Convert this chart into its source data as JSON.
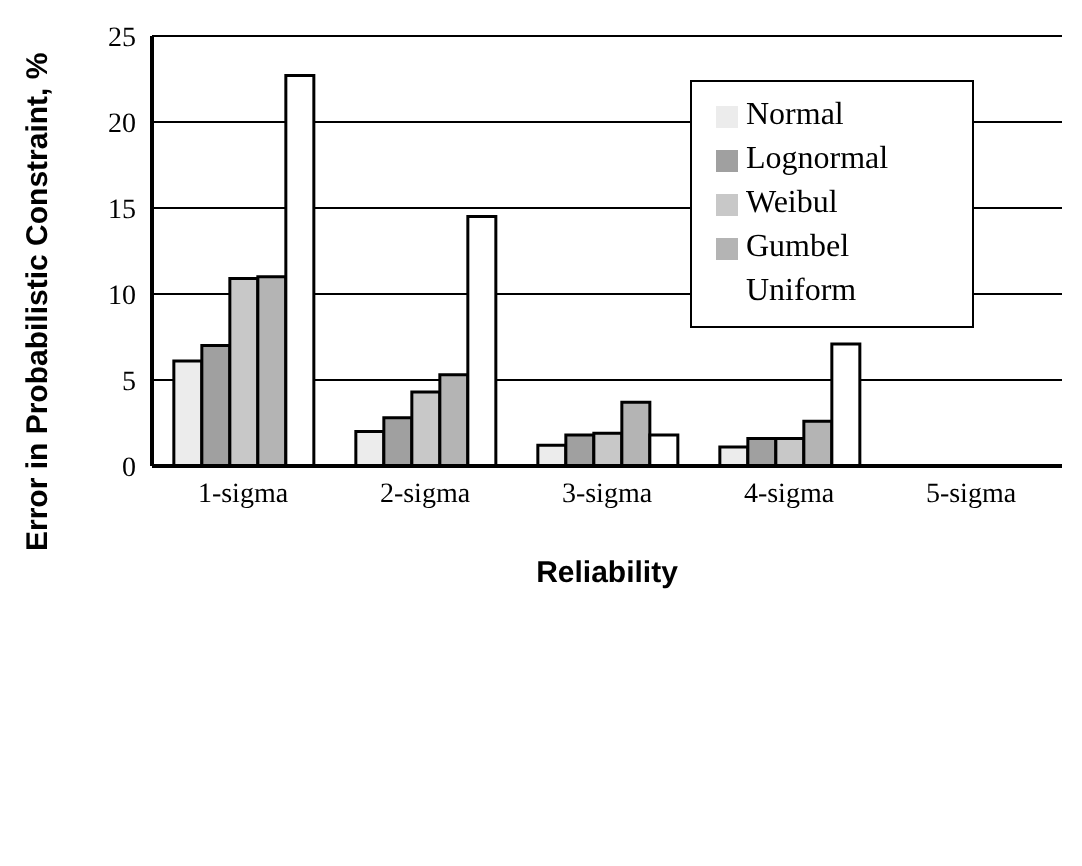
{
  "chart_data": {
    "type": "bar",
    "xlabel": "Reliability",
    "ylabel": "Error in Probabilistic Constraint, %",
    "categories": [
      "1-sigma",
      "2-sigma",
      "3-sigma",
      "4-sigma",
      "5-sigma"
    ],
    "series": [
      {
        "name": "Normal",
        "color": "#ececec",
        "values": [
          6.1,
          2.0,
          1.2,
          1.1,
          null
        ]
      },
      {
        "name": "Lognormal",
        "color": "#a0a0a0",
        "values": [
          7.0,
          2.8,
          1.8,
          1.6,
          null
        ]
      },
      {
        "name": "Weibul",
        "color": "#c8c8c8",
        "values": [
          10.9,
          4.3,
          1.9,
          1.6,
          null
        ]
      },
      {
        "name": "Gumbel",
        "color": "#b4b4b4",
        "values": [
          11.0,
          5.3,
          3.7,
          2.6,
          null
        ]
      },
      {
        "name": "Uniform",
        "color": "#ffffff",
        "values": [
          22.7,
          14.5,
          1.8,
          7.1,
          null
        ]
      }
    ],
    "ylim": [
      0,
      25
    ],
    "yticks": [
      0,
      5,
      10,
      15,
      20,
      25
    ],
    "grid": "y",
    "legend": "top right"
  }
}
